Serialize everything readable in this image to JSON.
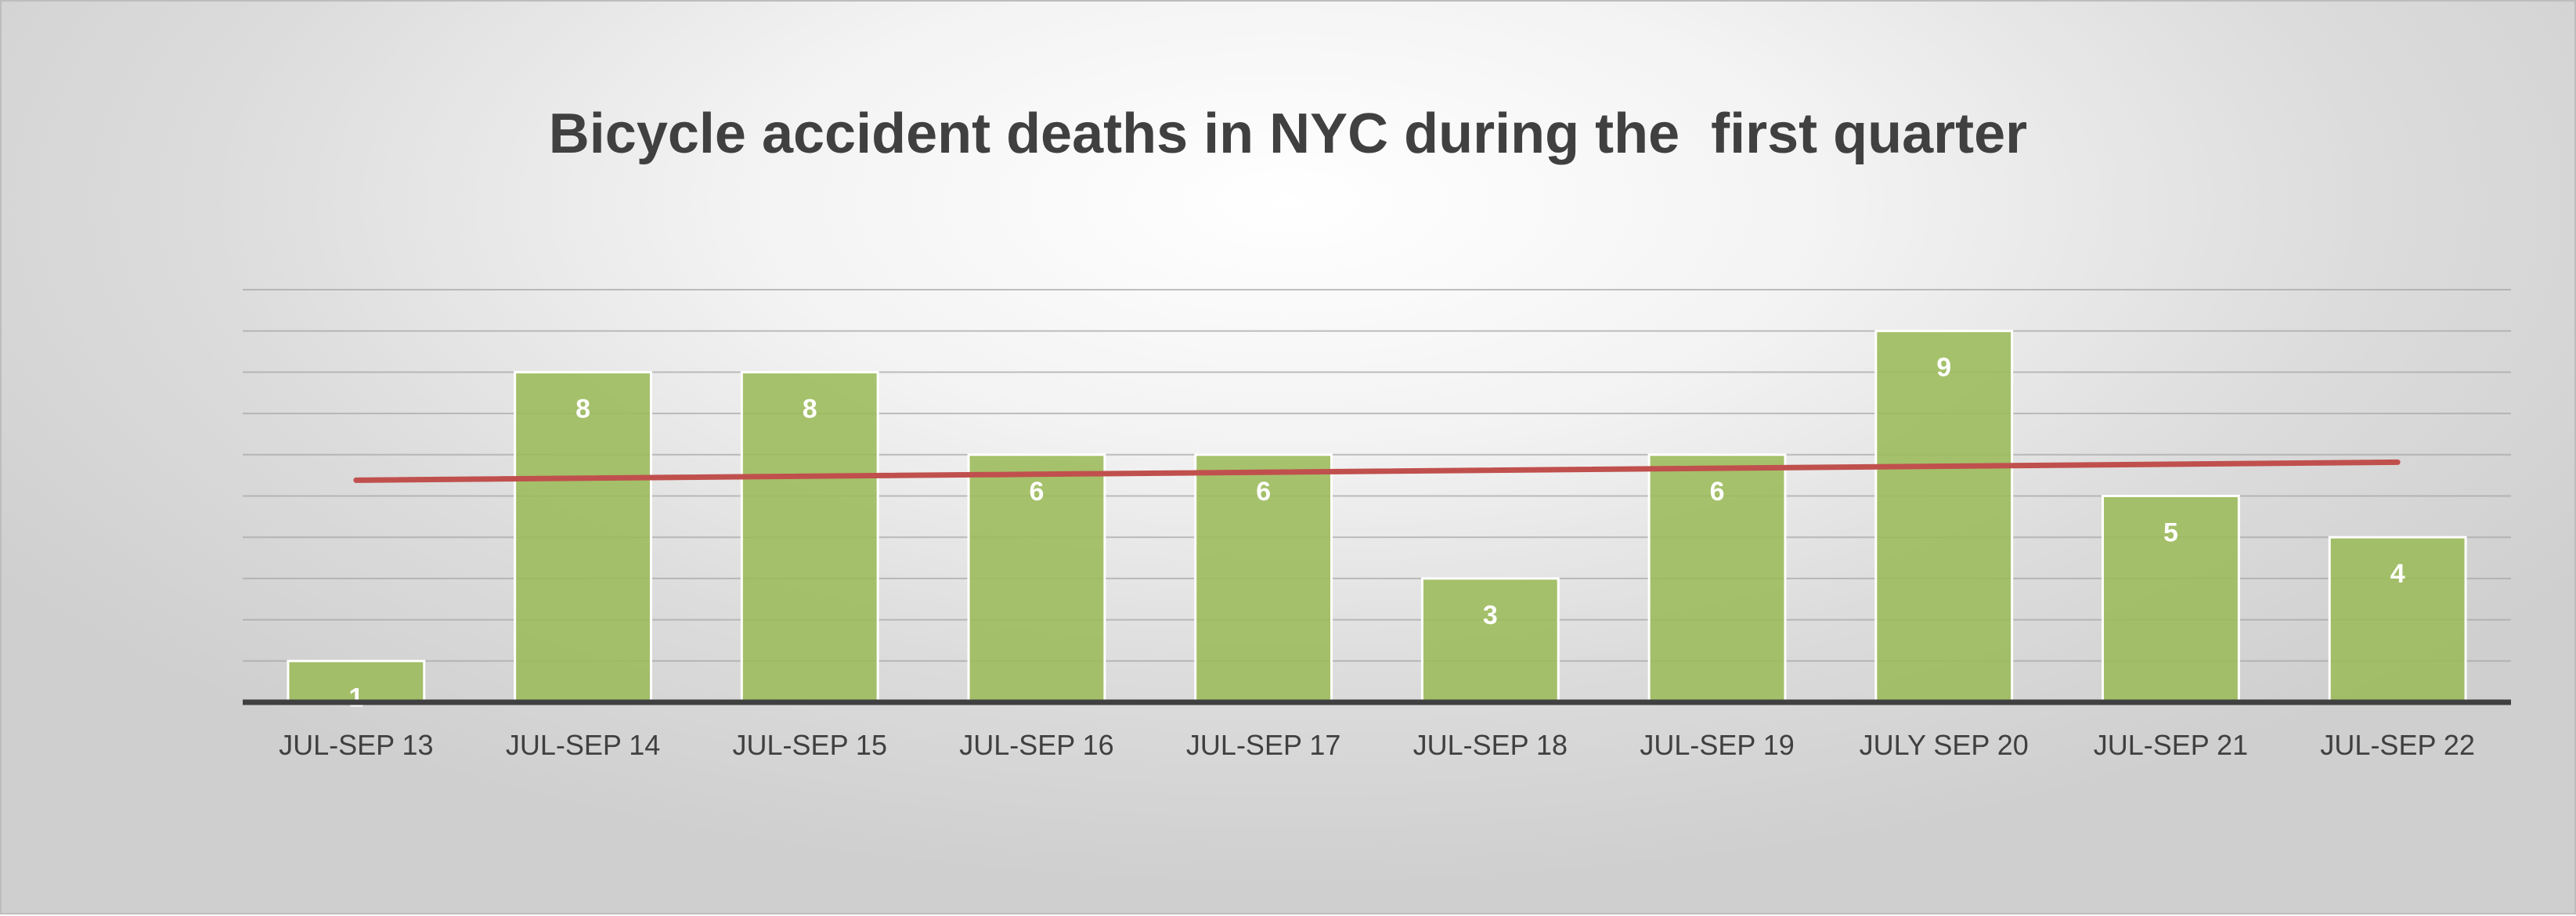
{
  "chart_data": {
    "type": "bar",
    "title": "Bicycle accident deaths in NYC during the  first quarter",
    "xlabel": "",
    "ylabel": "",
    "categories": [
      "JUL-SEP 13",
      "JUL-SEP 14",
      "JUL-SEP 15",
      "JUL-SEP 16",
      "JUL-SEP 17",
      "JUL-SEP 18",
      "JUL-SEP 19",
      "JULY SEP 20",
      "JUL-SEP 21",
      "JUL-SEP 22"
    ],
    "values": [
      1,
      8,
      8,
      6,
      6,
      3,
      6,
      9,
      5,
      4
    ],
    "data_labels": [
      "1",
      "8",
      "8",
      "6",
      "6",
      "3",
      "6",
      "9",
      "5",
      "4"
    ],
    "ylim": [
      0,
      10
    ],
    "y_axis_labels_shown": false,
    "grid": true,
    "legend": "none",
    "trendline": {
      "type": "linear",
      "color": "#C0504D"
    },
    "colors": {
      "bar": "#9BBB59",
      "bar_outline": "#FFFFFF",
      "trendline": "#C0504D",
      "gridline": "#A6A6A6",
      "axis": "#404040",
      "title": "#404040"
    }
  }
}
